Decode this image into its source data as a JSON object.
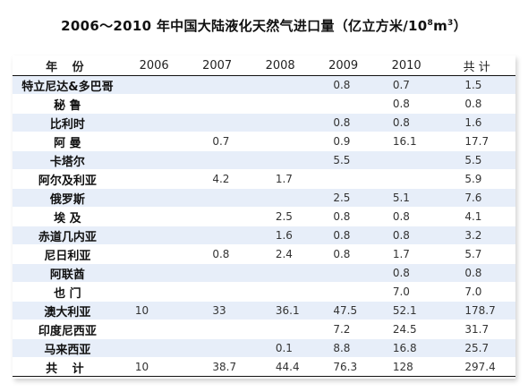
{
  "title": {
    "prefix": "2006～2010 年中国大陆液化天然气进口量（亿立方米/10",
    "exponent1": "8",
    "mid": "m",
    "exponent2": "3",
    "suffix": "）"
  },
  "table": {
    "headers": [
      "年 份",
      "2006",
      "2007",
      "2008",
      "2009",
      "2010",
      "共 计"
    ],
    "rows": [
      {
        "name": "特立尼达&多巴哥",
        "v2006": "",
        "v2007": "",
        "v2008": "",
        "v2009": "0.8",
        "v2010": "0.7",
        "total": "1.5"
      },
      {
        "name": "秘 鲁",
        "v2006": "",
        "v2007": "",
        "v2008": "",
        "v2009": "",
        "v2010": "0.8",
        "total": "0.8"
      },
      {
        "name": "比利时",
        "v2006": "",
        "v2007": "",
        "v2008": "",
        "v2009": "0.8",
        "v2010": "0.8",
        "total": "1.6"
      },
      {
        "name": "阿 曼",
        "v2006": "",
        "v2007": "0.7",
        "v2008": "",
        "v2009": "0.9",
        "v2010": "16.1",
        "total": "17.7"
      },
      {
        "name": "卡塔尔",
        "v2006": "",
        "v2007": "",
        "v2008": "",
        "v2009": "5.5",
        "v2010": "",
        "total": "5.5"
      },
      {
        "name": "阿尔及利亚",
        "v2006": "",
        "v2007": "4.2",
        "v2008": "1.7",
        "v2009": "",
        "v2010": "",
        "total": "5.9"
      },
      {
        "name": "俄罗斯",
        "v2006": "",
        "v2007": "",
        "v2008": "",
        "v2009": "2.5",
        "v2010": "5.1",
        "total": "7.6"
      },
      {
        "name": "埃 及",
        "v2006": "",
        "v2007": "",
        "v2008": "2.5",
        "v2009": "0.8",
        "v2010": "0.8",
        "total": "4.1"
      },
      {
        "name": "赤道几内亚",
        "v2006": "",
        "v2007": "",
        "v2008": "1.6",
        "v2009": "0.8",
        "v2010": "0.8",
        "total": "3.2"
      },
      {
        "name": "尼日利亚",
        "v2006": "",
        "v2007": "0.8",
        "v2008": "2.4",
        "v2009": "0.8",
        "v2010": "1.7",
        "total": "5.7"
      },
      {
        "name": "阿联酋",
        "v2006": "",
        "v2007": "",
        "v2008": "",
        "v2009": "",
        "v2010": "0.8",
        "total": "0.8"
      },
      {
        "name": "也 门",
        "v2006": "",
        "v2007": "",
        "v2008": "",
        "v2009": "",
        "v2010": "7.0",
        "total": "7.0"
      },
      {
        "name": "澳大利亚",
        "v2006": "10",
        "v2007": "33",
        "v2008": "36.1",
        "v2009": "47.5",
        "v2010": "52.1",
        "total": "178.7"
      },
      {
        "name": "印度尼西亚",
        "v2006": "",
        "v2007": "",
        "v2008": "",
        "v2009": "7.2",
        "v2010": "24.5",
        "total": "31.7"
      },
      {
        "name": "马来西亚",
        "v2006": "",
        "v2007": "",
        "v2008": "0.1",
        "v2009": "8.8",
        "v2010": "16.8",
        "total": "25.7"
      }
    ],
    "total_row": {
      "name": "共 计",
      "v2006": "10",
      "v2007": "38.7",
      "v2008": "44.4",
      "v2009": "76.3",
      "v2010": "128",
      "total": "297.4"
    }
  }
}
